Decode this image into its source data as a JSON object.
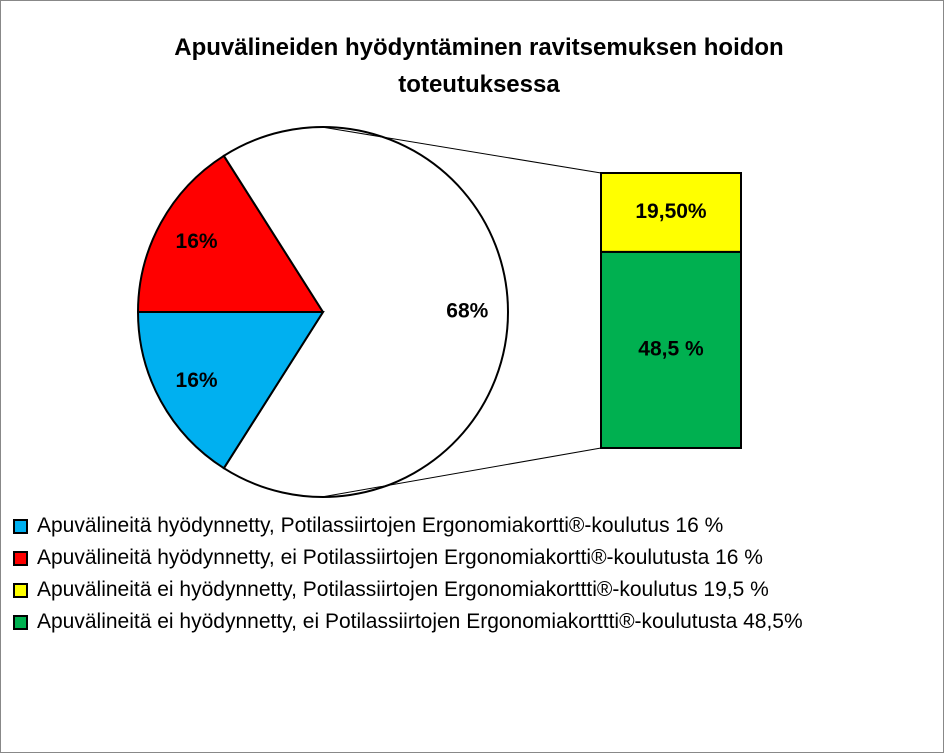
{
  "chart_data": {
    "type": "bar-of-pie",
    "title": "Apuvälineiden hyödyntäminen ravitsemuksen hoidon toteutuksessa",
    "categories": [
      "Apuvälineitä hyödynnetty, Potilassiirtojen Ergonomiakortti®-koulutus 16 %",
      "Apuvälineitä hyödynnetty, ei Potilassiirtojen Ergonomiakortti®-koulutusta 16 %",
      "Apuvälineitä ei hyödynnetty, Potilassiirtojen Ergonomiakorttti®-koulutus 19,5 %",
      "Apuvälineitä ei hyödynnetty, ei Potilassiirtojen Ergonomiakorttti®-koulutusta 48,5%"
    ],
    "values": [
      16,
      16,
      19.5,
      48.5
    ],
    "value_labels": [
      "16%",
      "16%",
      "19,50%",
      "48,5 %"
    ],
    "colors": [
      "#00b0f0",
      "#ff0000",
      "#ffff00",
      "#00b050"
    ],
    "other": {
      "value": 68,
      "label": "68%",
      "color": "#ffffff"
    },
    "legend": "bottom"
  }
}
